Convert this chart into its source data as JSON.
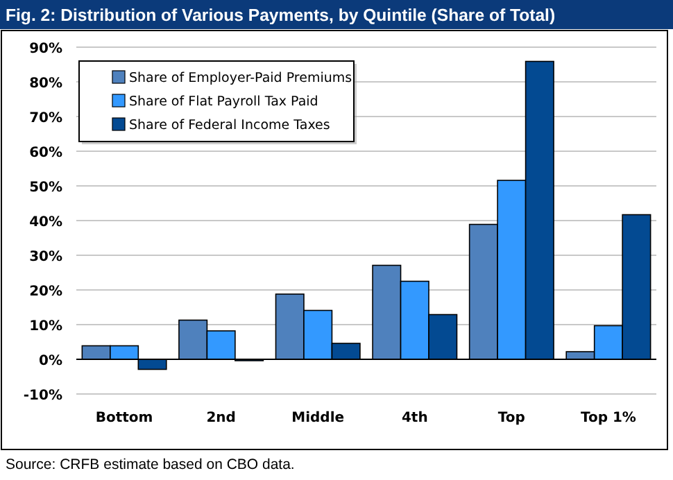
{
  "chart_data": {
    "type": "bar",
    "title": "Fig. 2: Distribution of Various Payments, by Quintile (Share of Total)",
    "categories": [
      "Bottom",
      "2nd",
      "Middle",
      "4th",
      "Top",
      "Top 1%"
    ],
    "series": [
      {
        "name": "Share of Employer-Paid Premiums",
        "color": "#4f81bd",
        "values": [
          3.9,
          11.3,
          18.8,
          27.1,
          38.9,
          2.2
        ]
      },
      {
        "name": "Share of Flat Payroll Tax Paid",
        "color": "#3399ff",
        "values": [
          3.9,
          8.2,
          14.1,
          22.5,
          51.6,
          9.7
        ]
      },
      {
        "name": "Share of Federal Income Taxes",
        "color": "#034a92",
        "values": [
          -2.9,
          -0.4,
          4.6,
          12.9,
          85.9,
          41.7
        ]
      }
    ],
    "ylim": [
      -10,
      90
    ],
    "yticks": [
      {
        "value": -10,
        "label": "-10%"
      },
      {
        "value": 0,
        "label": "0%"
      },
      {
        "value": 10,
        "label": "10%"
      },
      {
        "value": 20,
        "label": "20%"
      },
      {
        "value": 30,
        "label": "30%"
      },
      {
        "value": 40,
        "label": "40%"
      },
      {
        "value": 50,
        "label": "50%"
      },
      {
        "value": 60,
        "label": "60%"
      },
      {
        "value": 70,
        "label": "70%"
      },
      {
        "value": 80,
        "label": "80%"
      },
      {
        "value": 90,
        "label": "90%"
      }
    ],
    "grid": "y",
    "legend": "top left",
    "annotations": [
      "Source: CRFB estimate based on CBO data."
    ]
  }
}
